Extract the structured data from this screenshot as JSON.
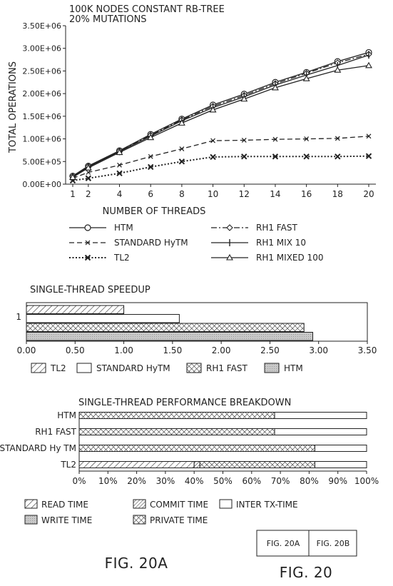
{
  "chart_data": [
    {
      "type": "line",
      "title": "100K NODES CONSTANT RB-TREE",
      "subtitle": "20% MUTATIONS",
      "xlabel": "NUMBER OF THREADS",
      "ylabel": "TOTAL OPERATIONS",
      "x": [
        1,
        2,
        4,
        6,
        8,
        10,
        12,
        14,
        16,
        18,
        20
      ],
      "ylim": [
        0,
        3500000
      ],
      "ytick_labels": [
        "0.00E+00",
        "5.00E+05",
        "1.00E+06",
        "1.50E+06",
        "2.00E+06",
        "2.50E+06",
        "3.00E+06",
        "3.50E+06"
      ],
      "series": [
        {
          "name": "HTM",
          "values": [
            180000,
            400000,
            740000,
            1100000,
            1440000,
            1750000,
            1990000,
            2250000,
            2470000,
            2710000,
            2910000
          ]
        },
        {
          "name": "STANDARD HyTM",
          "values": [
            130000,
            260000,
            420000,
            610000,
            780000,
            960000,
            970000,
            990000,
            1000000,
            1010000,
            1060000
          ]
        },
        {
          "name": "TL2",
          "values": [
            80000,
            130000,
            240000,
            380000,
            500000,
            600000,
            610000,
            610000,
            610000,
            610000,
            620000
          ]
        },
        {
          "name": "RH1 FAST",
          "values": [
            170000,
            390000,
            730000,
            1080000,
            1420000,
            1720000,
            1960000,
            2220000,
            2450000,
            2680000,
            2870000
          ]
        },
        {
          "name": "RH1 MIX 10",
          "values": [
            160000,
            380000,
            720000,
            1060000,
            1400000,
            1690000,
            1930000,
            2190000,
            2410000,
            2620000,
            2850000
          ]
        },
        {
          "name": "RH1 MIXED 100",
          "values": [
            150000,
            360000,
            700000,
            1030000,
            1350000,
            1640000,
            1880000,
            2130000,
            2330000,
            2520000,
            2620000
          ]
        }
      ]
    },
    {
      "type": "bar",
      "orientation": "horizontal",
      "title": "SINGLE-THREAD SPEEDUP",
      "categories": [
        "1"
      ],
      "xlim": [
        0,
        3.5
      ],
      "xtick_labels": [
        "0.00",
        "0.50",
        "1.00",
        "1.50",
        "2.00",
        "2.50",
        "3.00",
        "3.50"
      ],
      "series": [
        {
          "name": "TL2",
          "values": [
            1.0
          ]
        },
        {
          "name": "STANDARD HyTM",
          "values": [
            1.57
          ]
        },
        {
          "name": "RH1 FAST",
          "values": [
            2.85
          ]
        },
        {
          "name": "HTM",
          "values": [
            2.94
          ]
        }
      ]
    },
    {
      "type": "bar",
      "orientation": "horizontal",
      "stacked": true,
      "title": "SINGLE-THREAD PERFORMANCE BREAKDOWN",
      "categories": [
        "HTM",
        "RH1 FAST",
        "STANDARD Hy TM",
        "TL2"
      ],
      "xlim": [
        0,
        100
      ],
      "xtick_labels": [
        "0%",
        "10%",
        "20%",
        "30%",
        "40%",
        "50%",
        "60%",
        "70%",
        "80%",
        "90%",
        "100%"
      ],
      "legend": [
        "READ TIME",
        "COMMIT TIME",
        "INTER TX-TIME",
        "WRITE TIME",
        "PRIVATE TIME"
      ],
      "series": [
        {
          "name": "READ TIME",
          "values": [
            0,
            0,
            0,
            40
          ]
        },
        {
          "name": "COMMIT TIME",
          "values": [
            0,
            0,
            0,
            2
          ]
        },
        {
          "name": "WRITE TIME",
          "values": [
            0,
            0,
            0,
            0
          ]
        },
        {
          "name": "PRIVATE TIME",
          "values": [
            68,
            68,
            82,
            40
          ]
        },
        {
          "name": "INTER TX-TIME",
          "values": [
            32,
            32,
            18,
            18
          ]
        }
      ]
    }
  ],
  "figure": {
    "caption_a": "FIG. 20A",
    "caption": "FIG. 20",
    "box_a": "FIG. 20A",
    "box_b": "FIG. 20B"
  }
}
